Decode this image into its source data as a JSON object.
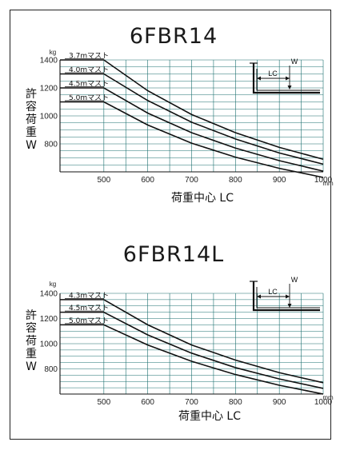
{
  "chart_data": [
    {
      "type": "line",
      "title": "6FBR14",
      "xlabel": "荷重中心 LC",
      "ylabel": [
        "許",
        "容",
        "荷",
        "重",
        "W"
      ],
      "y_unit": "kg",
      "x_unit": "mm",
      "xlim": [
        400,
        1000
      ],
      "ylim": [
        600,
        1400
      ],
      "x_ticks": [
        "500",
        "600",
        "700",
        "800",
        "900",
        "1000"
      ],
      "y_ticks": [
        "1400",
        "1200",
        "1000",
        "800"
      ],
      "grid": true,
      "inset_labels": {
        "lc": "LC",
        "w": "W"
      },
      "series": [
        {
          "name": "3.7mマスト",
          "x": [
            400,
            500,
            600,
            700,
            800,
            900,
            1000
          ],
          "y": [
            1400,
            1400,
            1180,
            1010,
            880,
            775,
            690
          ]
        },
        {
          "name": "4.0mマスト",
          "x": [
            400,
            500,
            600,
            700,
            800,
            900,
            1000
          ],
          "y": [
            1300,
            1300,
            1110,
            955,
            835,
            735,
            655
          ]
        },
        {
          "name": "4.5mマスト",
          "x": [
            400,
            500,
            600,
            700,
            800,
            900,
            1000
          ],
          "y": [
            1200,
            1200,
            1020,
            880,
            770,
            680,
            605
          ]
        },
        {
          "name": "5.0mマスト",
          "x": [
            400,
            500,
            600,
            700,
            800,
            900,
            1000
          ],
          "y": [
            1100,
            1100,
            935,
            805,
            705,
            625,
            560
          ]
        }
      ]
    },
    {
      "type": "line",
      "title": "6FBR14L",
      "xlabel": "荷重中心 LC",
      "ylabel": [
        "許",
        "容",
        "荷",
        "重",
        "W"
      ],
      "y_unit": "kg",
      "x_unit": "mm",
      "xlim": [
        400,
        1000
      ],
      "ylim": [
        600,
        1400
      ],
      "x_ticks": [
        "500",
        "600",
        "700",
        "800",
        "900",
        "1000"
      ],
      "y_ticks": [
        "1400",
        "1200",
        "1000",
        "800"
      ],
      "grid": true,
      "inset_labels": {
        "lc": "LC",
        "w": "W"
      },
      "series": [
        {
          "name": "4.3mマスト",
          "x": [
            400,
            500,
            600,
            700,
            800,
            900,
            1000
          ],
          "y": [
            1350,
            1350,
            1150,
            990,
            870,
            770,
            690
          ]
        },
        {
          "name": "4.5mマスト",
          "x": [
            400,
            500,
            600,
            700,
            800,
            900,
            1000
          ],
          "y": [
            1250,
            1250,
            1070,
            925,
            810,
            720,
            645
          ]
        },
        {
          "name": "5.0mマスト",
          "x": [
            400,
            500,
            600,
            700,
            800,
            900,
            1000
          ],
          "y": [
            1150,
            1150,
            990,
            860,
            755,
            670,
            600
          ]
        }
      ]
    }
  ]
}
